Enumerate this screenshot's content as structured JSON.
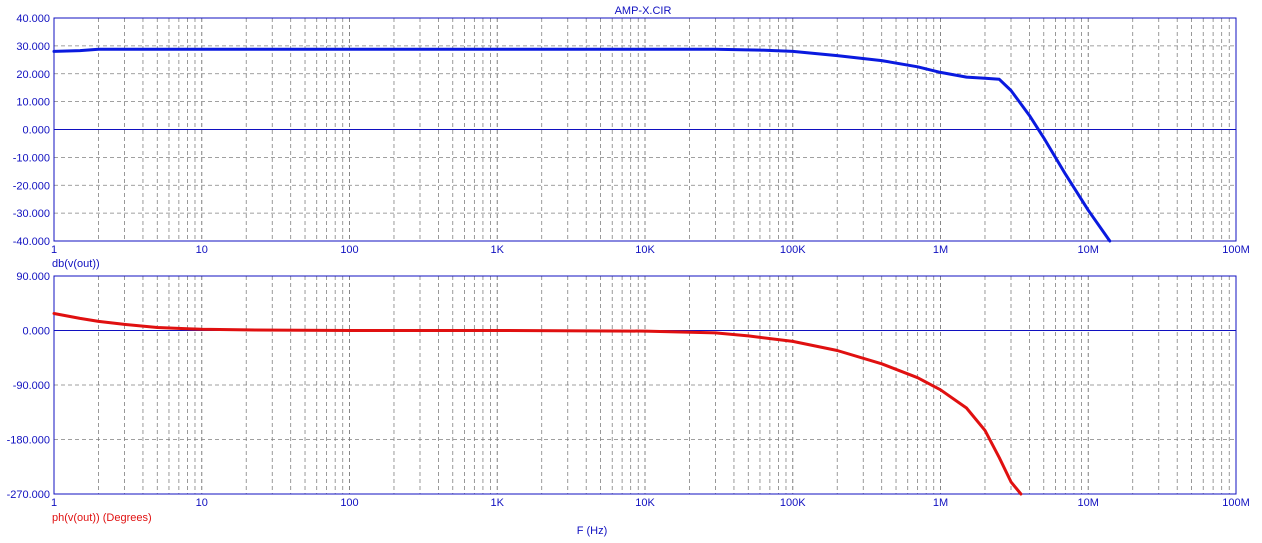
{
  "window_title": "AMP-X.CIR",
  "x_axis_label": "F (Hz)",
  "colors": {
    "axis": "#1010c0",
    "gain": "#0a1adf",
    "phase": "#e01010",
    "grid": "#808080",
    "background": "#ffffff"
  },
  "chart_data": [
    {
      "type": "line",
      "title": "AMP-X.CIR",
      "xlabel": "",
      "ylabel": "",
      "xscale": "log",
      "xlim": [
        1,
        100000000
      ],
      "ylim": [
        -40,
        40
      ],
      "x_tick_labels": [
        "1",
        "10",
        "100",
        "1K",
        "10K",
        "100K",
        "1M",
        "10M",
        "100M"
      ],
      "y_tick_labels": [
        "40.000",
        "30.000",
        "20.000",
        "10.000",
        "0.000",
        "-10.000",
        "-20.000",
        "-30.000",
        "-40.000"
      ],
      "grid": true,
      "series": [
        {
          "name": "db(v(out))",
          "color": "#0a1adf",
          "x": [
            1,
            1.5,
            2,
            5,
            10,
            100,
            1000,
            10000,
            30000,
            60000,
            100000,
            200000,
            400000,
            700000,
            1000000,
            1500000,
            2000000,
            2500000,
            3000000,
            4000000,
            5000000,
            7000000,
            10000000,
            14000000
          ],
          "y": [
            28,
            28.3,
            28.8,
            28.8,
            28.8,
            28.8,
            28.8,
            28.8,
            28.8,
            28.5,
            28,
            26.5,
            24.7,
            22.5,
            20.5,
            18.8,
            18.4,
            18,
            14,
            5,
            -3,
            -16,
            -29,
            -40
          ]
        }
      ]
    },
    {
      "type": "line",
      "xlabel": "F (Hz)",
      "ylabel": "",
      "xscale": "log",
      "xlim": [
        1,
        100000000
      ],
      "ylim": [
        -270,
        90
      ],
      "x_tick_labels": [
        "1",
        "10",
        "100",
        "1K",
        "10K",
        "100K",
        "1M",
        "10M",
        "100M"
      ],
      "y_tick_labels": [
        "90.000",
        "0.000",
        "-90.000",
        "-180.000",
        "-270.000"
      ],
      "grid": true,
      "series": [
        {
          "name": "ph(v(out)) (Degrees)",
          "color": "#e01010",
          "x": [
            1,
            1.5,
            2,
            3,
            5,
            8,
            10,
            20,
            100,
            1000,
            10000,
            30000,
            50000,
            100000,
            200000,
            400000,
            700000,
            1000000,
            1500000,
            2000000,
            2500000,
            3000000,
            3500000
          ],
          "y": [
            28,
            20,
            15,
            10,
            5,
            3,
            2,
            1,
            0,
            0,
            -1,
            -4,
            -9,
            -18,
            -33,
            -55,
            -78,
            -98,
            -128,
            -165,
            -210,
            -250,
            -275
          ]
        }
      ]
    }
  ]
}
